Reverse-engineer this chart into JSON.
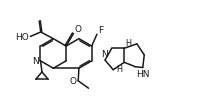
{
  "bg_color": "#ffffff",
  "line_color": "#1a1a1a",
  "line_width": 1.1,
  "font_size": 6.5,
  "fig_width": 1.97,
  "fig_height": 1.13,
  "dpi": 100,
  "xlim": [
    0,
    9.5
  ],
  "ylim": [
    0,
    5.5
  ]
}
